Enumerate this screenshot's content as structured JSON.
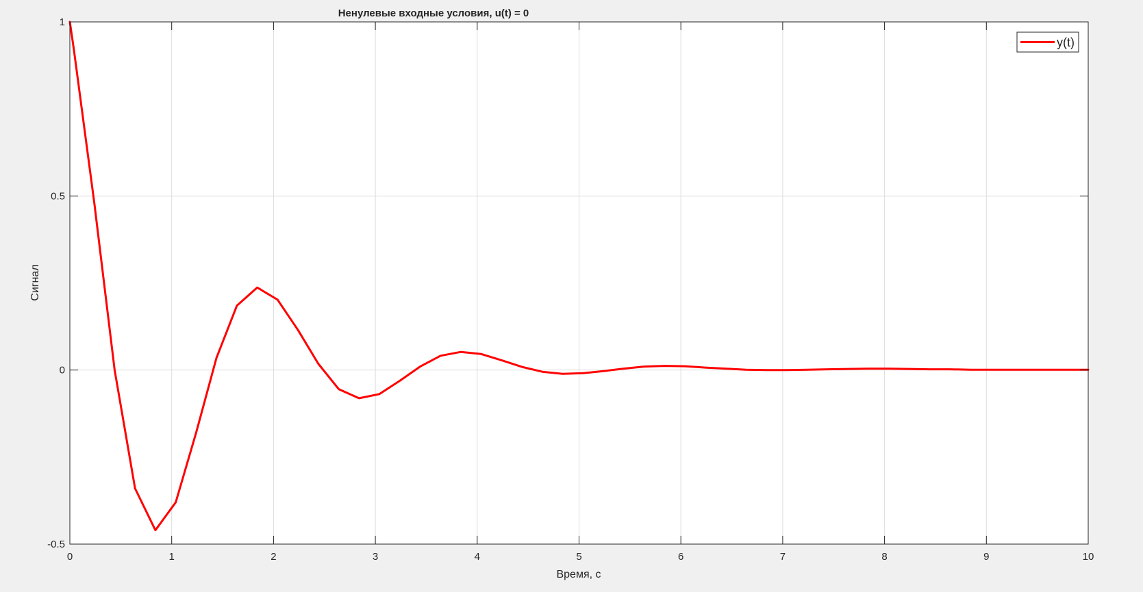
{
  "chart_data": {
    "type": "line",
    "title": "Ненулевые входные условия, u(t) = 0",
    "xlabel": "Время, с",
    "ylabel": "Сигнал",
    "xlim": [
      0,
      10
    ],
    "ylim": [
      -0.5,
      1
    ],
    "xticks": [
      "0",
      "1",
      "2",
      "3",
      "4",
      "5",
      "6",
      "7",
      "8",
      "9",
      "10"
    ],
    "yticks": [
      "-0.5",
      "0",
      "0.5",
      "1"
    ],
    "grid": true,
    "legend_position": "top-right",
    "series": [
      {
        "name": "y(t)",
        "color": "#ff0000",
        "x": [
          0,
          0.04,
          0.24,
          0.44,
          0.64,
          0.84,
          1.04,
          1.24,
          1.44,
          1.64,
          1.84,
          2.04,
          2.24,
          2.44,
          2.64,
          2.84,
          3.04,
          3.24,
          3.44,
          3.64,
          3.84,
          4.04,
          4.24,
          4.44,
          4.64,
          4.84,
          5.04,
          5.24,
          5.44,
          5.64,
          5.84,
          6.04,
          6.24,
          6.44,
          6.64,
          6.84,
          7.04,
          7.24,
          7.44,
          7.64,
          7.84,
          8.04,
          8.24,
          8.44,
          8.64,
          8.84,
          9.04,
          9.24,
          9.44,
          9.64,
          9.84,
          10
        ],
        "y": [
          1,
          0.92,
          0.48,
          0.0,
          -0.34,
          -0.46,
          -0.38,
          -0.18,
          0.035,
          0.185,
          0.237,
          0.202,
          0.115,
          0.018,
          -0.055,
          -0.081,
          -0.069,
          -0.031,
          0.01,
          0.041,
          0.052,
          0.046,
          0.028,
          0.009,
          -0.005,
          -0.011,
          -0.009,
          -0.003,
          0.004,
          0.01,
          0.012,
          0.011,
          0.007,
          0.004,
          0.001,
          0.0,
          0.0,
          0.001,
          0.002,
          0.003,
          0.004,
          0.004,
          0.003,
          0.002,
          0.002,
          0.001,
          0.001,
          0.001,
          0.001,
          0.001,
          0.001,
          0.001
        ]
      }
    ]
  }
}
